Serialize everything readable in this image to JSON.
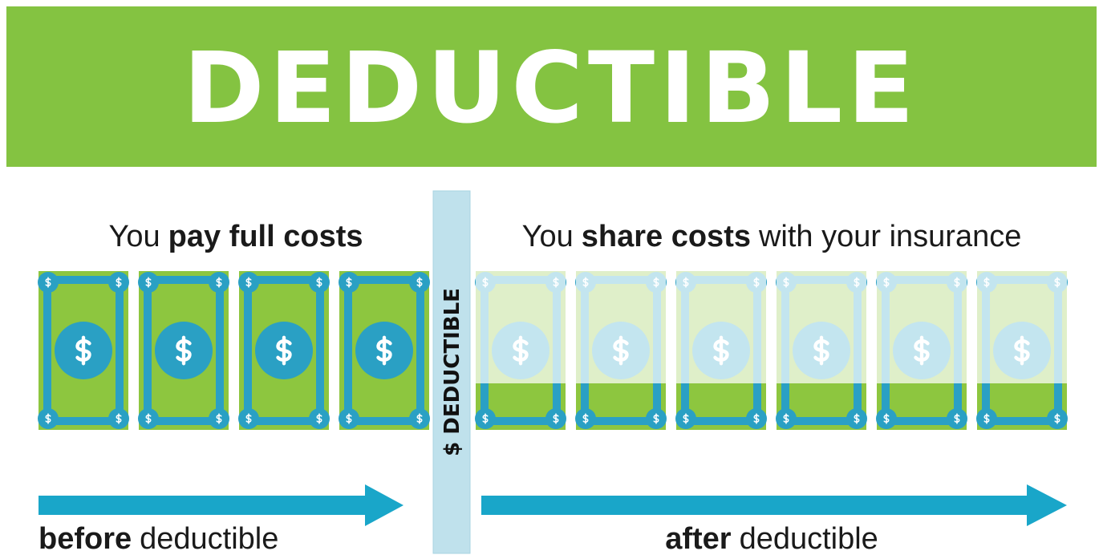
{
  "header": {
    "title": "DEDUCTIBLE"
  },
  "before": {
    "heading": {
      "lead": "You",
      "emphasis": "pay full costs"
    },
    "footer": {
      "emphasis": "before",
      "rest": "deductible"
    }
  },
  "after": {
    "heading": {
      "lead": "You",
      "emphasis": "share costs",
      "rest": "with your insurance"
    },
    "footer": {
      "emphasis": "after",
      "rest": "deductible"
    }
  },
  "divider": {
    "label": "$ DEDUCTIBLE"
  }
}
